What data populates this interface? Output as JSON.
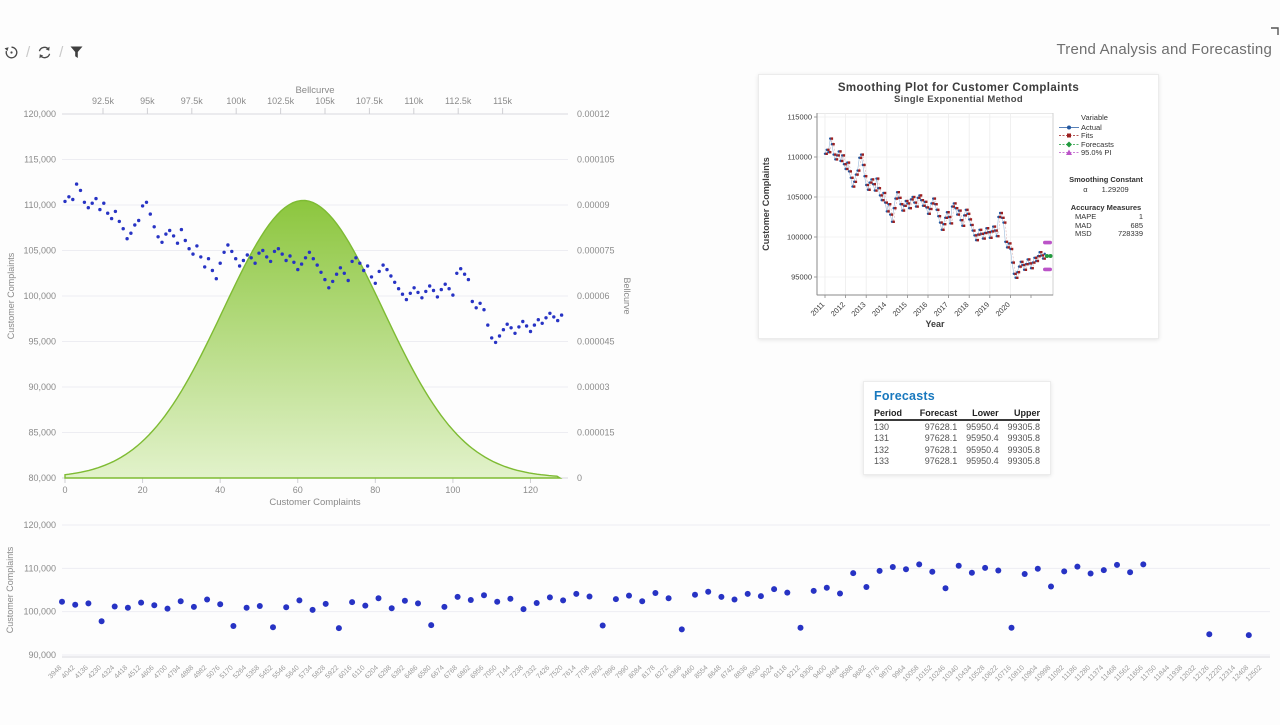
{
  "header": {
    "title": "Trend Analysis and Forecasting",
    "toolbar": [
      {
        "name": "undo-icon"
      },
      {
        "name": "refresh-icon"
      },
      {
        "name": "filter-icon"
      }
    ]
  },
  "forecasts": {
    "title": "Forecasts",
    "columns": [
      "Period",
      "Forecast",
      "Lower",
      "Upper"
    ],
    "rows": [
      [
        "130",
        "97628.1",
        "95950.4",
        "99305.8"
      ],
      [
        "131",
        "97628.1",
        "95950.4",
        "99305.8"
      ],
      [
        "132",
        "97628.1",
        "95950.4",
        "99305.8"
      ],
      [
        "133",
        "97628.1",
        "95950.4",
        "99305.8"
      ]
    ]
  },
  "chart_data": [
    {
      "id": "bellcurve_chart",
      "type": "scatter",
      "top_axis": {
        "label": "Bellcurve",
        "ticks": [
          "92.5k",
          "95k",
          "97.5k",
          "100k",
          "102.5k",
          "105k",
          "107.5k",
          "110k",
          "112.5k",
          "115k"
        ]
      },
      "left_axis": {
        "label": "Customer Complaints",
        "ticks": [
          "120,000",
          "115,000",
          "110,000",
          "105,000",
          "100,000",
          "95,000",
          "90,000",
          "85,000",
          "80,000"
        ],
        "range": [
          80000,
          120000
        ]
      },
      "right_axis": {
        "label": "Bellcurve",
        "ticks": [
          "0.00012",
          "0.000105",
          "0.00009",
          "0.000075",
          "0.00006",
          "0.000045",
          "0.00003",
          "0.000015",
          "0"
        ],
        "range": [
          0,
          0.00012
        ]
      },
      "bottom_axis": {
        "label": "Customer Complaints",
        "ticks": [
          "0",
          "20",
          "40",
          "60",
          "80",
          "100",
          "120"
        ],
        "range": [
          0,
          130
        ]
      },
      "point_color": "#2733c4",
      "bell_area": {
        "center_index": 61.4,
        "sd_index": 20.6,
        "peak": 9.15e-05,
        "fill_top": "#8cc63e",
        "fill_bottom": "#e2f2cb",
        "stroke": "#7ebb33"
      },
      "scatter_values": [
        110400,
        110900,
        110600,
        112300,
        111600,
        110300,
        109700,
        110200,
        110700,
        109500,
        110200,
        109100,
        108500,
        109300,
        108200,
        107400,
        106300,
        106900,
        107800,
        108300,
        109900,
        110300,
        109000,
        107600,
        106500,
        105900,
        106800,
        107200,
        106600,
        105800,
        107300,
        106100,
        105200,
        104600,
        105500,
        104300,
        103200,
        104100,
        102800,
        101900,
        103600,
        104800,
        105600,
        104900,
        104100,
        103300,
        103900,
        104500,
        104200,
        103600,
        104700,
        105000,
        104300,
        103800,
        104900,
        105200,
        104600,
        103900,
        104400,
        103700,
        102900,
        103500,
        104200,
        104800,
        104100,
        103400,
        102600,
        101800,
        100900,
        101600,
        102400,
        103100,
        102500,
        101700,
        103800,
        104200,
        103600,
        102800,
        103300,
        102100,
        101400,
        102700,
        103400,
        102900,
        102200,
        101500,
        100800,
        100200,
        99600,
        100300,
        100900,
        100400,
        99800,
        100500,
        101100,
        100600,
        99900,
        100700,
        101300,
        100800,
        100100,
        102500,
        103000,
        102400,
        101800,
        99400,
        98700,
        99200,
        98500,
        96800,
        95400,
        94900,
        95600,
        96300,
        96900,
        96500,
        95900,
        96600,
        97200,
        96700,
        96100,
        96800,
        97400,
        97000,
        97600,
        98100,
        97700,
        97300,
        97900
      ]
    },
    {
      "id": "smoothing_plot",
      "type": "line",
      "title": "Smoothing Plot for Customer Complaints",
      "subtitle": "Single Exponential Method",
      "xlabel": "Year",
      "ylabel": "Customer Complaints",
      "y_ticks": [
        "115000",
        "110000",
        "105000",
        "100000",
        "95000"
      ],
      "x_ticks": [
        "2011",
        "2012",
        "2013",
        "2014",
        "2015",
        "2016",
        "2017",
        "2018",
        "2019",
        "2020"
      ],
      "series_note": "Actual series = bellcurve_chart.scatter_values; Fits = one-step-back smoothed values",
      "forecast_value": 97628.1,
      "pi_upper": 99305.8,
      "pi_lower": 95950.4,
      "legend": {
        "title": "Variable",
        "entries": [
          {
            "label": "Actual",
            "color": "#2257a0",
            "marker": "circle",
            "dash": false
          },
          {
            "label": "Fits",
            "color": "#9c2020",
            "marker": "square",
            "dash": true
          },
          {
            "label": "Forecasts",
            "color": "#229a3e",
            "marker": "diamond",
            "dash": true
          },
          {
            "label": "95.0% PI",
            "color": "#bb54c8",
            "marker": "triangle",
            "dash": true
          }
        ]
      },
      "stats": {
        "constant_label": "Smoothing Constant",
        "alpha_symbol": "α",
        "alpha_value": "1.29209",
        "accuracy_label": "Accuracy Measures",
        "accuracy": [
          [
            "MAPE",
            "1"
          ],
          [
            "MAD",
            "685"
          ],
          [
            "MSD",
            "728339"
          ]
        ]
      }
    },
    {
      "id": "bottom_scatter",
      "type": "scatter",
      "ylabel": "Customer Complaints",
      "y_ticks": [
        "120,000",
        "110,000",
        "100,000",
        "90,000"
      ],
      "y_range": [
        90000,
        120000
      ],
      "point_color": "#2733c4",
      "x_labels": [
        "3948",
        "4042",
        "4136",
        "4230",
        "4324",
        "4418",
        "4512",
        "4606",
        "4700",
        "4794",
        "4888",
        "4982",
        "5076",
        "5170",
        "5264",
        "5358",
        "5452",
        "5546",
        "5640",
        "5734",
        "5828",
        "5922",
        "6016",
        "6110",
        "6204",
        "6298",
        "6392",
        "6486",
        "6580",
        "6674",
        "6768",
        "6862",
        "6956",
        "7050",
        "7144",
        "7238",
        "7332",
        "7426",
        "7520",
        "7614",
        "7708",
        "7802",
        "7896",
        "7990",
        "8084",
        "8178",
        "8272",
        "8366",
        "8460",
        "8554",
        "8648",
        "8742",
        "8836",
        "8930",
        "9024",
        "9118",
        "9212",
        "9306",
        "9400",
        "9494",
        "9588",
        "9682",
        "9776",
        "9870",
        "9964",
        "10058",
        "10152",
        "10246",
        "10340",
        "10434",
        "10528",
        "10622",
        "10716",
        "10810",
        "10904",
        "10998",
        "11092",
        "11186",
        "11280",
        "11374",
        "11468",
        "11562",
        "11656",
        "11750",
        "11844",
        "11938",
        "12032",
        "12126",
        "12220",
        "12314",
        "12408",
        "12502"
      ],
      "y_values": [
        102300,
        101600,
        101900,
        97800,
        101200,
        100900,
        102100,
        101500,
        100700,
        102400,
        101100,
        102800,
        101700,
        96700,
        100900,
        101300,
        96400,
        101000,
        102600,
        100400,
        101800,
        96200,
        102200,
        101400,
        103100,
        100800,
        102500,
        101900,
        96900,
        101100,
        103400,
        102700,
        103800,
        102300,
        103000,
        100600,
        102000,
        103300,
        102600,
        104100,
        103500,
        96800,
        102900,
        103700,
        102400,
        104300,
        103100,
        95900,
        103900,
        104600,
        103400,
        102800,
        104100,
        103600,
        105200,
        104400,
        96300,
        104800,
        105500,
        104200,
        108900,
        105700,
        109400,
        110300,
        109800,
        110900,
        109200,
        105400,
        110600,
        109000,
        110100,
        109500,
        96300,
        108700,
        109900,
        105800,
        109300,
        110400,
        108800,
        109600,
        110800,
        109100,
        110900,
        null,
        null,
        null,
        null,
        94800,
        null,
        null,
        94600,
        null
      ]
    }
  ]
}
